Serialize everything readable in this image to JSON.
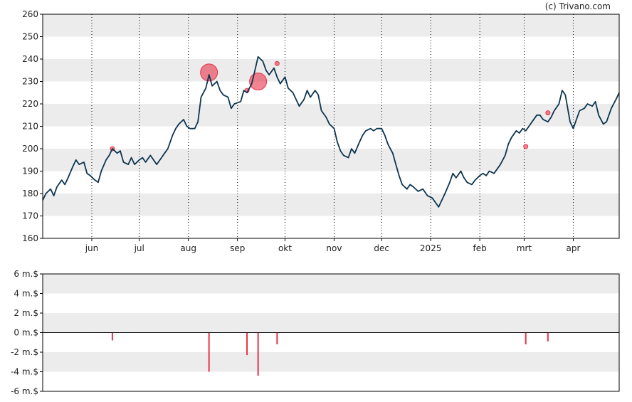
{
  "credit": "(c) Trivano.com",
  "colors": {
    "price_line": "#0d3550",
    "insider_marker": "#e8334a",
    "band": "#ececec",
    "axis": "#000000",
    "vgrid": "#000000"
  },
  "chart_data": [
    {
      "type": "line",
      "series": [
        {
          "name": "",
          "x_start": "2024-05-01",
          "x_end": "2025-04-30"
        }
      ],
      "y_ticks": [
        160,
        170,
        180,
        190,
        200,
        210,
        220,
        230,
        240,
        250,
        260
      ],
      "ylim": [
        160,
        260
      ],
      "x_ticks": [
        "jun",
        "jul",
        "aug",
        "sep",
        "okt",
        "nov",
        "dec",
        "2025",
        "feb",
        "mrt",
        "apr"
      ],
      "x_tick_dates": [
        "2024-06-01",
        "2024-07-01",
        "2024-08-01",
        "2024-09-01",
        "2024-10-01",
        "2024-11-01",
        "2024-12-01",
        "2025-01-01",
        "2025-02-01",
        "2025-03-01",
        "2025-04-01"
      ],
      "grid": "alternating horizontal bands, dotted vertical month lines",
      "price_points": [
        [
          "2024-05-01",
          177
        ],
        [
          "2024-05-03",
          180
        ],
        [
          "2024-05-06",
          182
        ],
        [
          "2024-05-08",
          179
        ],
        [
          "2024-05-10",
          183
        ],
        [
          "2024-05-13",
          186
        ],
        [
          "2024-05-15",
          184
        ],
        [
          "2024-05-17",
          187
        ],
        [
          "2024-05-20",
          192
        ],
        [
          "2024-05-22",
          195
        ],
        [
          "2024-05-24",
          193
        ],
        [
          "2024-05-27",
          194
        ],
        [
          "2024-05-29",
          189
        ],
        [
          "2024-05-31",
          188
        ],
        [
          "2024-06-03",
          186
        ],
        [
          "2024-06-05",
          185
        ],
        [
          "2024-06-07",
          190
        ],
        [
          "2024-06-10",
          195
        ],
        [
          "2024-06-12",
          197
        ],
        [
          "2024-06-14",
          200
        ],
        [
          "2024-06-17",
          198
        ],
        [
          "2024-06-19",
          199
        ],
        [
          "2024-06-21",
          194
        ],
        [
          "2024-06-24",
          193
        ],
        [
          "2024-06-26",
          196
        ],
        [
          "2024-06-28",
          193
        ],
        [
          "2024-07-01",
          195
        ],
        [
          "2024-07-03",
          196
        ],
        [
          "2024-07-05",
          194
        ],
        [
          "2024-07-08",
          197
        ],
        [
          "2024-07-10",
          195
        ],
        [
          "2024-07-12",
          193
        ],
        [
          "2024-07-15",
          196
        ],
        [
          "2024-07-17",
          198
        ],
        [
          "2024-07-19",
          200
        ],
        [
          "2024-07-22",
          206
        ],
        [
          "2024-07-24",
          209
        ],
        [
          "2024-07-26",
          211
        ],
        [
          "2024-07-29",
          213
        ],
        [
          "2024-07-31",
          210
        ],
        [
          "2024-08-02",
          209
        ],
        [
          "2024-08-05",
          209
        ],
        [
          "2024-08-07",
          212
        ],
        [
          "2024-08-09",
          223
        ],
        [
          "2024-08-12",
          227
        ],
        [
          "2024-08-14",
          233
        ],
        [
          "2024-08-16",
          228
        ],
        [
          "2024-08-19",
          230
        ],
        [
          "2024-08-21",
          226
        ],
        [
          "2024-08-23",
          224
        ],
        [
          "2024-08-26",
          223
        ],
        [
          "2024-08-28",
          218
        ],
        [
          "2024-08-30",
          220
        ],
        [
          "2024-09-03",
          221
        ],
        [
          "2024-09-05",
          226
        ],
        [
          "2024-09-07",
          225
        ],
        [
          "2024-09-10",
          229
        ],
        [
          "2024-09-12",
          235
        ],
        [
          "2024-09-14",
          241
        ],
        [
          "2024-09-17",
          239
        ],
        [
          "2024-09-19",
          235
        ],
        [
          "2024-09-21",
          233
        ],
        [
          "2024-09-24",
          236
        ],
        [
          "2024-09-26",
          232
        ],
        [
          "2024-09-28",
          229
        ],
        [
          "2024-10-01",
          232
        ],
        [
          "2024-10-03",
          227
        ],
        [
          "2024-10-06",
          225
        ],
        [
          "2024-10-08",
          222
        ],
        [
          "2024-10-10",
          219
        ],
        [
          "2024-10-13",
          222
        ],
        [
          "2024-10-15",
          226
        ],
        [
          "2024-10-17",
          223
        ],
        [
          "2024-10-20",
          226
        ],
        [
          "2024-10-22",
          224
        ],
        [
          "2024-10-24",
          217
        ],
        [
          "2024-10-27",
          214
        ],
        [
          "2024-10-29",
          211
        ],
        [
          "2024-11-01",
          209
        ],
        [
          "2024-11-03",
          203
        ],
        [
          "2024-11-05",
          199
        ],
        [
          "2024-11-07",
          197
        ],
        [
          "2024-11-10",
          196
        ],
        [
          "2024-11-12",
          200
        ],
        [
          "2024-11-14",
          198
        ],
        [
          "2024-11-17",
          203
        ],
        [
          "2024-11-19",
          206
        ],
        [
          "2024-11-21",
          208
        ],
        [
          "2024-11-24",
          209
        ],
        [
          "2024-11-26",
          208
        ],
        [
          "2024-11-28",
          209
        ],
        [
          "2024-12-01",
          209
        ],
        [
          "2024-12-03",
          206
        ],
        [
          "2024-12-05",
          202
        ],
        [
          "2024-12-08",
          198
        ],
        [
          "2024-12-10",
          193
        ],
        [
          "2024-12-12",
          188
        ],
        [
          "2024-12-14",
          184
        ],
        [
          "2024-12-17",
          182
        ],
        [
          "2024-12-19",
          184
        ],
        [
          "2024-12-21",
          183
        ],
        [
          "2024-12-24",
          181
        ],
        [
          "2024-12-27",
          182
        ],
        [
          "2024-12-30",
          179
        ],
        [
          "2025-01-02",
          178
        ],
        [
          "2025-01-04",
          176
        ],
        [
          "2025-01-06",
          174
        ],
        [
          "2025-01-08",
          177
        ],
        [
          "2025-01-10",
          180
        ],
        [
          "2025-01-13",
          185
        ],
        [
          "2025-01-15",
          189
        ],
        [
          "2025-01-17",
          187
        ],
        [
          "2025-01-20",
          190
        ],
        [
          "2025-01-22",
          187
        ],
        [
          "2025-01-24",
          185
        ],
        [
          "2025-01-27",
          184
        ],
        [
          "2025-01-29",
          186
        ],
        [
          "2025-02-01",
          188
        ],
        [
          "2025-02-03",
          189
        ],
        [
          "2025-02-05",
          188
        ],
        [
          "2025-02-07",
          190
        ],
        [
          "2025-02-10",
          189
        ],
        [
          "2025-02-12",
          191
        ],
        [
          "2025-02-14",
          193
        ],
        [
          "2025-02-17",
          197
        ],
        [
          "2025-02-19",
          202
        ],
        [
          "2025-02-21",
          205
        ],
        [
          "2025-02-24",
          208
        ],
        [
          "2025-02-26",
          207
        ],
        [
          "2025-02-28",
          209
        ],
        [
          "2025-03-02",
          208
        ],
        [
          "2025-03-04",
          210
        ],
        [
          "2025-03-06",
          212
        ],
        [
          "2025-03-09",
          215
        ],
        [
          "2025-03-11",
          215
        ],
        [
          "2025-03-13",
          213
        ],
        [
          "2025-03-16",
          212
        ],
        [
          "2025-03-18",
          214
        ],
        [
          "2025-03-20",
          217
        ],
        [
          "2025-03-23",
          220
        ],
        [
          "2025-03-25",
          226
        ],
        [
          "2025-03-27",
          224
        ],
        [
          "2025-03-30",
          212
        ],
        [
          "2025-04-01",
          209
        ],
        [
          "2025-04-03",
          213
        ],
        [
          "2025-04-05",
          217
        ],
        [
          "2025-04-08",
          218
        ],
        [
          "2025-04-10",
          220
        ],
        [
          "2025-04-13",
          219
        ],
        [
          "2025-04-15",
          221
        ],
        [
          "2025-04-17",
          215
        ],
        [
          "2025-04-20",
          211
        ],
        [
          "2025-04-22",
          212
        ],
        [
          "2025-04-25",
          218
        ],
        [
          "2025-04-28",
          222
        ],
        [
          "2025-04-30",
          225
        ]
      ],
      "insider_circles": [
        {
          "date": "2024-06-14",
          "price": 200,
          "size": "small"
        },
        {
          "date": "2024-08-14",
          "price": 234,
          "size": "large"
        },
        {
          "date": "2024-09-07",
          "price": 226,
          "size": "small"
        },
        {
          "date": "2024-09-14",
          "price": 230,
          "size": "large"
        },
        {
          "date": "2024-09-26",
          "price": 238,
          "size": "small"
        },
        {
          "date": "2025-03-02",
          "price": 201,
          "size": "small"
        },
        {
          "date": "2025-03-16",
          "price": 216,
          "size": "small"
        }
      ]
    },
    {
      "type": "bar",
      "y_ticks": [
        "6 m.$",
        "4 m.$",
        "2 m.$",
        "0 m.$",
        "-2 m.$",
        "-4 m.$",
        "-6 m.$"
      ],
      "y_tick_values": [
        6,
        4,
        2,
        0,
        -2,
        -4,
        -6
      ],
      "ylim": [
        -6,
        6
      ],
      "unit": "m.$",
      "values": [
        {
          "date": "2024-06-14",
          "value": -0.8
        },
        {
          "date": "2024-08-14",
          "value": -4.0
        },
        {
          "date": "2024-09-07",
          "value": -2.3
        },
        {
          "date": "2024-09-14",
          "value": -4.4
        },
        {
          "date": "2024-09-26",
          "value": -1.2
        },
        {
          "date": "2025-03-02",
          "value": -1.2
        },
        {
          "date": "2025-03-16",
          "value": -0.9
        }
      ]
    }
  ]
}
